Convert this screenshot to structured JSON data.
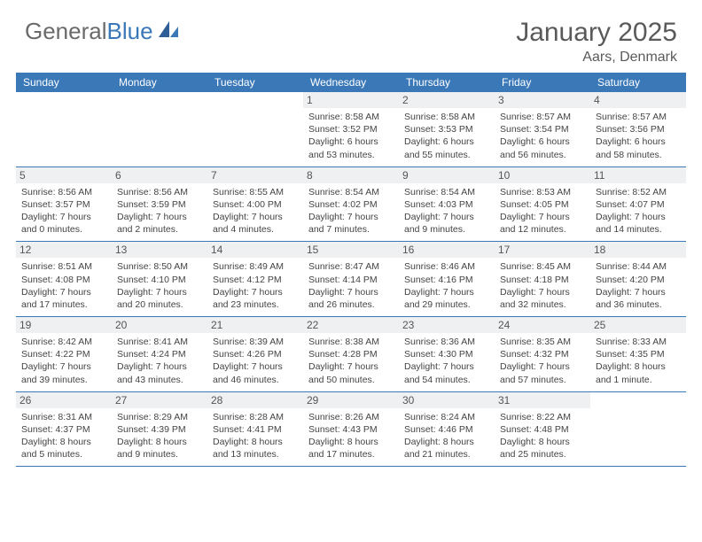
{
  "brand": {
    "part1": "General",
    "part2": "Blue"
  },
  "title": "January 2025",
  "location": "Aars, Denmark",
  "colors": {
    "header_bg": "#3a78b8",
    "header_text": "#ffffff",
    "daynum_bg": "#eef0f2",
    "text": "#444444",
    "brand_gray": "#6a6a6a",
    "brand_blue": "#3a78b8",
    "rule": "#3a78b8"
  },
  "day_headers": [
    "Sunday",
    "Monday",
    "Tuesday",
    "Wednesday",
    "Thursday",
    "Friday",
    "Saturday"
  ],
  "weeks": [
    [
      null,
      null,
      null,
      {
        "n": "1",
        "sr": "Sunrise: 8:58 AM",
        "ss": "Sunset: 3:52 PM",
        "d1": "Daylight: 6 hours",
        "d2": "and 53 minutes."
      },
      {
        "n": "2",
        "sr": "Sunrise: 8:58 AM",
        "ss": "Sunset: 3:53 PM",
        "d1": "Daylight: 6 hours",
        "d2": "and 55 minutes."
      },
      {
        "n": "3",
        "sr": "Sunrise: 8:57 AM",
        "ss": "Sunset: 3:54 PM",
        "d1": "Daylight: 6 hours",
        "d2": "and 56 minutes."
      },
      {
        "n": "4",
        "sr": "Sunrise: 8:57 AM",
        "ss": "Sunset: 3:56 PM",
        "d1": "Daylight: 6 hours",
        "d2": "and 58 minutes."
      }
    ],
    [
      {
        "n": "5",
        "sr": "Sunrise: 8:56 AM",
        "ss": "Sunset: 3:57 PM",
        "d1": "Daylight: 7 hours",
        "d2": "and 0 minutes."
      },
      {
        "n": "6",
        "sr": "Sunrise: 8:56 AM",
        "ss": "Sunset: 3:59 PM",
        "d1": "Daylight: 7 hours",
        "d2": "and 2 minutes."
      },
      {
        "n": "7",
        "sr": "Sunrise: 8:55 AM",
        "ss": "Sunset: 4:00 PM",
        "d1": "Daylight: 7 hours",
        "d2": "and 4 minutes."
      },
      {
        "n": "8",
        "sr": "Sunrise: 8:54 AM",
        "ss": "Sunset: 4:02 PM",
        "d1": "Daylight: 7 hours",
        "d2": "and 7 minutes."
      },
      {
        "n": "9",
        "sr": "Sunrise: 8:54 AM",
        "ss": "Sunset: 4:03 PM",
        "d1": "Daylight: 7 hours",
        "d2": "and 9 minutes."
      },
      {
        "n": "10",
        "sr": "Sunrise: 8:53 AM",
        "ss": "Sunset: 4:05 PM",
        "d1": "Daylight: 7 hours",
        "d2": "and 12 minutes."
      },
      {
        "n": "11",
        "sr": "Sunrise: 8:52 AM",
        "ss": "Sunset: 4:07 PM",
        "d1": "Daylight: 7 hours",
        "d2": "and 14 minutes."
      }
    ],
    [
      {
        "n": "12",
        "sr": "Sunrise: 8:51 AM",
        "ss": "Sunset: 4:08 PM",
        "d1": "Daylight: 7 hours",
        "d2": "and 17 minutes."
      },
      {
        "n": "13",
        "sr": "Sunrise: 8:50 AM",
        "ss": "Sunset: 4:10 PM",
        "d1": "Daylight: 7 hours",
        "d2": "and 20 minutes."
      },
      {
        "n": "14",
        "sr": "Sunrise: 8:49 AM",
        "ss": "Sunset: 4:12 PM",
        "d1": "Daylight: 7 hours",
        "d2": "and 23 minutes."
      },
      {
        "n": "15",
        "sr": "Sunrise: 8:47 AM",
        "ss": "Sunset: 4:14 PM",
        "d1": "Daylight: 7 hours",
        "d2": "and 26 minutes."
      },
      {
        "n": "16",
        "sr": "Sunrise: 8:46 AM",
        "ss": "Sunset: 4:16 PM",
        "d1": "Daylight: 7 hours",
        "d2": "and 29 minutes."
      },
      {
        "n": "17",
        "sr": "Sunrise: 8:45 AM",
        "ss": "Sunset: 4:18 PM",
        "d1": "Daylight: 7 hours",
        "d2": "and 32 minutes."
      },
      {
        "n": "18",
        "sr": "Sunrise: 8:44 AM",
        "ss": "Sunset: 4:20 PM",
        "d1": "Daylight: 7 hours",
        "d2": "and 36 minutes."
      }
    ],
    [
      {
        "n": "19",
        "sr": "Sunrise: 8:42 AM",
        "ss": "Sunset: 4:22 PM",
        "d1": "Daylight: 7 hours",
        "d2": "and 39 minutes."
      },
      {
        "n": "20",
        "sr": "Sunrise: 8:41 AM",
        "ss": "Sunset: 4:24 PM",
        "d1": "Daylight: 7 hours",
        "d2": "and 43 minutes."
      },
      {
        "n": "21",
        "sr": "Sunrise: 8:39 AM",
        "ss": "Sunset: 4:26 PM",
        "d1": "Daylight: 7 hours",
        "d2": "and 46 minutes."
      },
      {
        "n": "22",
        "sr": "Sunrise: 8:38 AM",
        "ss": "Sunset: 4:28 PM",
        "d1": "Daylight: 7 hours",
        "d2": "and 50 minutes."
      },
      {
        "n": "23",
        "sr": "Sunrise: 8:36 AM",
        "ss": "Sunset: 4:30 PM",
        "d1": "Daylight: 7 hours",
        "d2": "and 54 minutes."
      },
      {
        "n": "24",
        "sr": "Sunrise: 8:35 AM",
        "ss": "Sunset: 4:32 PM",
        "d1": "Daylight: 7 hours",
        "d2": "and 57 minutes."
      },
      {
        "n": "25",
        "sr": "Sunrise: 8:33 AM",
        "ss": "Sunset: 4:35 PM",
        "d1": "Daylight: 8 hours",
        "d2": "and 1 minute."
      }
    ],
    [
      {
        "n": "26",
        "sr": "Sunrise: 8:31 AM",
        "ss": "Sunset: 4:37 PM",
        "d1": "Daylight: 8 hours",
        "d2": "and 5 minutes."
      },
      {
        "n": "27",
        "sr": "Sunrise: 8:29 AM",
        "ss": "Sunset: 4:39 PM",
        "d1": "Daylight: 8 hours",
        "d2": "and 9 minutes."
      },
      {
        "n": "28",
        "sr": "Sunrise: 8:28 AM",
        "ss": "Sunset: 4:41 PM",
        "d1": "Daylight: 8 hours",
        "d2": "and 13 minutes."
      },
      {
        "n": "29",
        "sr": "Sunrise: 8:26 AM",
        "ss": "Sunset: 4:43 PM",
        "d1": "Daylight: 8 hours",
        "d2": "and 17 minutes."
      },
      {
        "n": "30",
        "sr": "Sunrise: 8:24 AM",
        "ss": "Sunset: 4:46 PM",
        "d1": "Daylight: 8 hours",
        "d2": "and 21 minutes."
      },
      {
        "n": "31",
        "sr": "Sunrise: 8:22 AM",
        "ss": "Sunset: 4:48 PM",
        "d1": "Daylight: 8 hours",
        "d2": "and 25 minutes."
      },
      null
    ]
  ]
}
